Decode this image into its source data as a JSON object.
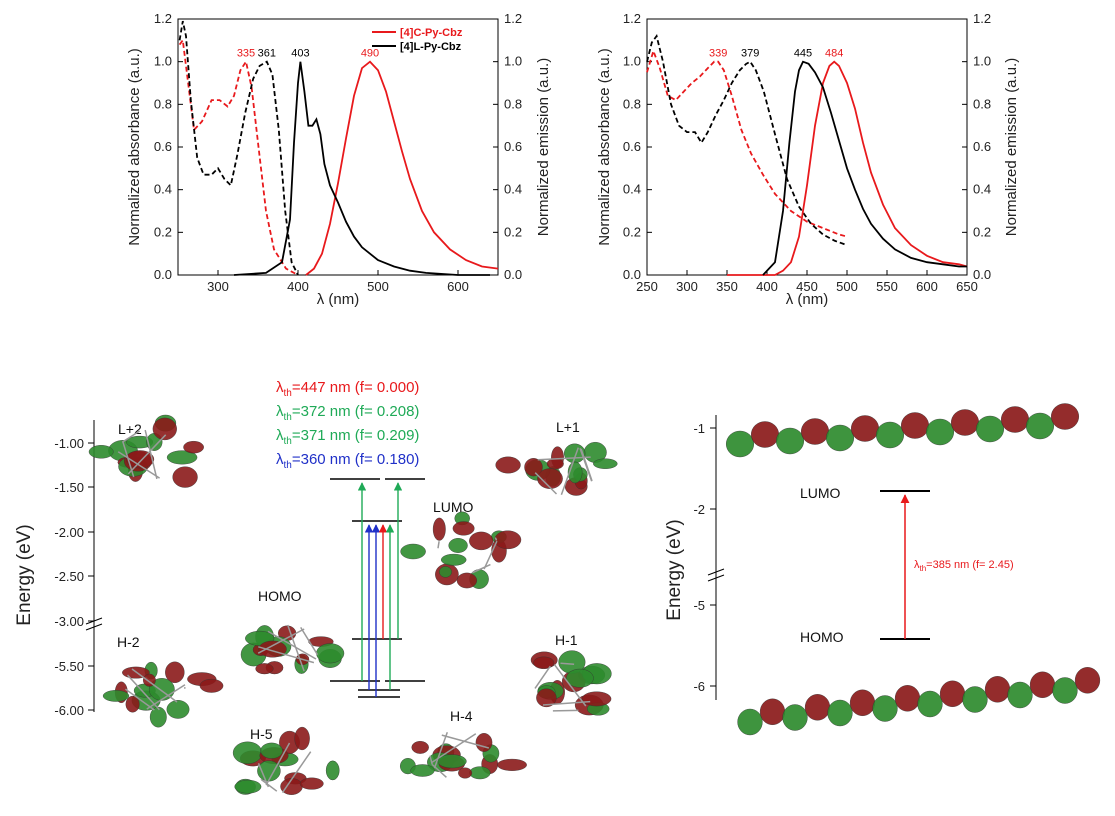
{
  "colors": {
    "cyclic": "#e8191c",
    "linear": "#000000",
    "green_transition": "#1faa57",
    "blue_transition": "#2030c8",
    "orbital_red": "#8b1a1a",
    "orbital_green": "#2e8b2e"
  },
  "chart_data": [
    {
      "type": "line",
      "panel": "top-left spectra",
      "xlabel": "λ (nm)",
      "ylabel_left": "Normalized absorbance (a.u.)",
      "ylabel_right": "Normalized emission (a.u.)",
      "xlim": [
        250,
        650
      ],
      "ylim": [
        0,
        1.2
      ],
      "x_ticks": [
        300,
        400,
        500,
        600
      ],
      "y_ticks": [
        0.0,
        0.2,
        0.4,
        0.6,
        0.8,
        1.0,
        1.2
      ],
      "legend": [
        "[4]C-Py-Cbz",
        "[4]L-Py-Cbz"
      ],
      "legend_position": "top-right",
      "peak_labels": [
        {
          "text": "335",
          "x": 335,
          "y": 1.0,
          "series": "cyclic"
        },
        {
          "text": "361",
          "x": 361,
          "y": 1.0,
          "series": "linear"
        },
        {
          "text": "403",
          "x": 403,
          "y": 1.0,
          "series": "linear"
        },
        {
          "text": "490",
          "x": 490,
          "y": 1.0,
          "series": "cyclic"
        }
      ],
      "series": [
        {
          "name": "[4]C-Py-Cbz",
          "kind": "absorbance",
          "dash": true,
          "color_key": "cyclic",
          "x": [
            252,
            256,
            262,
            270,
            280,
            292,
            302,
            312,
            320,
            328,
            335,
            342,
            350,
            360,
            370,
            385,
            400
          ],
          "y": [
            1.08,
            1.1,
            0.92,
            0.68,
            0.72,
            0.82,
            0.82,
            0.79,
            0.84,
            0.96,
            1.0,
            0.88,
            0.62,
            0.3,
            0.12,
            0.03,
            0.0
          ]
        },
        {
          "name": "[4]L-Py-Cbz",
          "kind": "absorbance",
          "dash": true,
          "color_key": "linear",
          "x": [
            252,
            256,
            260,
            266,
            274,
            282,
            292,
            300,
            308,
            316,
            324,
            334,
            344,
            352,
            361,
            368,
            376,
            384,
            392,
            400
          ],
          "y": [
            1.1,
            1.19,
            1.12,
            0.82,
            0.55,
            0.47,
            0.47,
            0.5,
            0.45,
            0.42,
            0.56,
            0.76,
            0.92,
            0.98,
            1.0,
            0.94,
            0.68,
            0.3,
            0.06,
            0.0
          ]
        },
        {
          "name": "[4]C-Py-Cbz",
          "kind": "emission",
          "dash": false,
          "color_key": "cyclic",
          "x": [
            410,
            420,
            430,
            440,
            450,
            460,
            470,
            480,
            490,
            500,
            510,
            520,
            530,
            540,
            555,
            570,
            590,
            610,
            630,
            650
          ],
          "y": [
            0.0,
            0.03,
            0.1,
            0.24,
            0.43,
            0.64,
            0.84,
            0.97,
            1.0,
            0.96,
            0.86,
            0.72,
            0.58,
            0.45,
            0.3,
            0.2,
            0.12,
            0.07,
            0.04,
            0.03
          ]
        },
        {
          "name": "[4]L-Py-Cbz",
          "kind": "emission",
          "dash": false,
          "color_key": "linear",
          "x": [
            320,
            360,
            380,
            390,
            395,
            400,
            403,
            408,
            413,
            418,
            423,
            428,
            433,
            440,
            450,
            460,
            470,
            480,
            490,
            500,
            520,
            540,
            560,
            600,
            640
          ],
          "y": [
            0.0,
            0.01,
            0.06,
            0.26,
            0.62,
            0.9,
            1.0,
            0.86,
            0.7,
            0.7,
            0.73,
            0.66,
            0.52,
            0.42,
            0.34,
            0.25,
            0.18,
            0.13,
            0.1,
            0.07,
            0.04,
            0.02,
            0.01,
            0.0,
            0.0
          ]
        }
      ]
    },
    {
      "type": "line",
      "panel": "top-right spectra",
      "xlabel": "λ (nm)",
      "ylabel_left": "Normalized absorbance (a.u.)",
      "ylabel_right": "Normalized emission (a.u.)",
      "xlim": [
        250,
        650
      ],
      "ylim": [
        0,
        1.2
      ],
      "x_ticks": [
        250,
        300,
        350,
        400,
        450,
        500,
        550,
        600,
        650
      ],
      "y_ticks": [
        0.0,
        0.2,
        0.4,
        0.6,
        0.8,
        1.0,
        1.2
      ],
      "peak_labels": [
        {
          "text": "339",
          "x": 339,
          "y": 1.0,
          "series": "cyclic"
        },
        {
          "text": "379",
          "x": 379,
          "y": 1.0,
          "series": "linear"
        },
        {
          "text": "445",
          "x": 445,
          "y": 1.0,
          "series": "linear"
        },
        {
          "text": "484",
          "x": 484,
          "y": 1.0,
          "series": "cyclic"
        }
      ],
      "series": [
        {
          "name": "[4]C-Py-Cbz",
          "kind": "absorbance",
          "dash": true,
          "color_key": "cyclic",
          "x": [
            250,
            258,
            266,
            276,
            286,
            296,
            306,
            316,
            326,
            334,
            339,
            346,
            356,
            368,
            380,
            395,
            410,
            430,
            450,
            470,
            490,
            500
          ],
          "y": [
            0.95,
            1.05,
            0.97,
            0.84,
            0.82,
            0.86,
            0.9,
            0.93,
            0.97,
            1.0,
            1.0,
            0.96,
            0.84,
            0.68,
            0.57,
            0.47,
            0.38,
            0.3,
            0.25,
            0.22,
            0.19,
            0.18
          ]
        },
        {
          "name": "[4]L-Py-Cbz",
          "kind": "absorbance",
          "dash": true,
          "color_key": "linear",
          "x": [
            250,
            256,
            262,
            270,
            280,
            290,
            300,
            310,
            318,
            326,
            336,
            346,
            356,
            366,
            374,
            379,
            386,
            396,
            410,
            425,
            440,
            455,
            470,
            485,
            500
          ],
          "y": [
            1.0,
            1.09,
            1.12,
            1.0,
            0.8,
            0.7,
            0.67,
            0.67,
            0.62,
            0.67,
            0.75,
            0.82,
            0.9,
            0.96,
            0.99,
            1.0,
            0.96,
            0.86,
            0.66,
            0.45,
            0.32,
            0.24,
            0.19,
            0.16,
            0.14
          ]
        },
        {
          "name": "[4]C-Py-Cbz",
          "kind": "emission",
          "dash": false,
          "color_key": "cyclic",
          "x": [
            350,
            410,
            420,
            430,
            440,
            450,
            460,
            470,
            478,
            484,
            490,
            500,
            510,
            520,
            530,
            545,
            560,
            580,
            600,
            620,
            640,
            650
          ],
          "y": [
            0.0,
            0.0,
            0.02,
            0.06,
            0.18,
            0.42,
            0.7,
            0.9,
            0.98,
            1.0,
            0.98,
            0.9,
            0.78,
            0.62,
            0.48,
            0.33,
            0.22,
            0.14,
            0.09,
            0.06,
            0.05,
            0.04
          ]
        },
        {
          "name": "[4]L-Py-Cbz",
          "kind": "emission",
          "dash": false,
          "color_key": "linear",
          "x": [
            395,
            410,
            420,
            428,
            435,
            440,
            445,
            452,
            460,
            470,
            480,
            490,
            500,
            510,
            520,
            530,
            545,
            560,
            580,
            600,
            620,
            640,
            650
          ],
          "y": [
            0.0,
            0.06,
            0.3,
            0.62,
            0.86,
            0.96,
            1.0,
            0.99,
            0.95,
            0.88,
            0.76,
            0.63,
            0.5,
            0.4,
            0.31,
            0.24,
            0.17,
            0.12,
            0.08,
            0.06,
            0.05,
            0.04,
            0.04
          ]
        }
      ]
    },
    {
      "type": "energy-diagram",
      "panel": "bottom-left orbitals",
      "ylabel": "Energy (eV)",
      "y_ticks_upper": [
        "-1.00",
        "-1.50",
        "-2.00",
        "-2.50",
        "-3.00"
      ],
      "y_ticks_lower": [
        "-5.50",
        "-6.00"
      ],
      "transitions": [
        {
          "prefix": "λ",
          "sub": "th",
          "text": "=447 nm (f= 0.000)",
          "color_key": "cyclic"
        },
        {
          "prefix": "λ",
          "sub": "th",
          "text": "=372 nm (f= 0.208)",
          "color_key": "green_transition"
        },
        {
          "prefix": "λ",
          "sub": "th",
          "text": "=371 nm (f= 0.209)",
          "color_key": "green_transition"
        },
        {
          "prefix": "λ",
          "sub": "th",
          "text": "=360 nm (f= 0.180)",
          "color_key": "blue_transition"
        }
      ],
      "orbitals": [
        "L+2",
        "L+1",
        "LUMO",
        "HOMO",
        "H-1",
        "H-2",
        "H-4",
        "H-5"
      ]
    },
    {
      "type": "energy-diagram",
      "panel": "bottom-right orbitals",
      "ylabel": "Energy (eV)",
      "y_ticks_upper": [
        "-1",
        "-2"
      ],
      "y_ticks_lower": [
        "-5",
        "-6"
      ],
      "transition": {
        "prefix": "λ",
        "sub": "th",
        "text": "=385 nm (f= 2.45)",
        "color_key": "cyclic"
      },
      "orbitals": [
        "LUMO",
        "HOMO"
      ]
    }
  ]
}
